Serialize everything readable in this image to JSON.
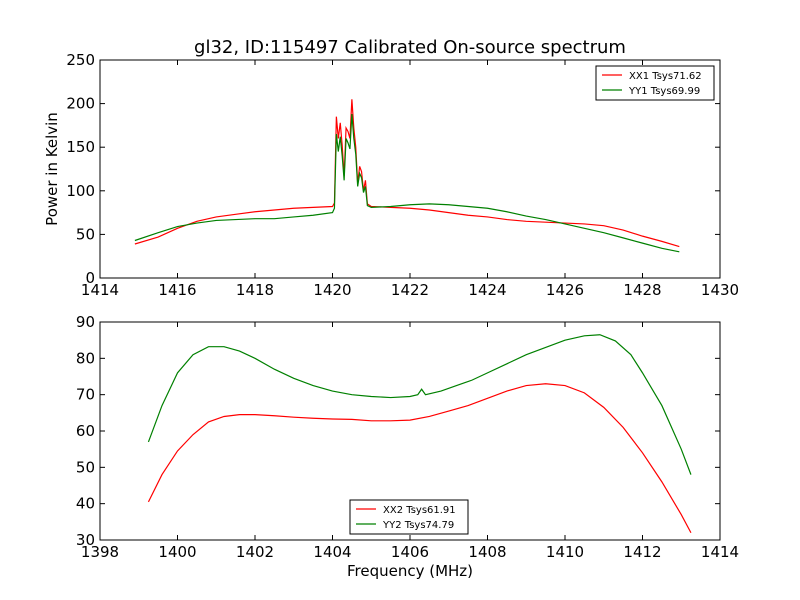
{
  "chart_data": [
    {
      "type": "line",
      "title": "gl32, ID:115497 Calibrated On-source spectrum",
      "xlabel": "",
      "ylabel": "Power in Kelvin",
      "xlim": [
        1414,
        1430
      ],
      "ylim": [
        0,
        250
      ],
      "xticks": [
        "1414",
        "1416",
        "1418",
        "1420",
        "1422",
        "1424",
        "1426",
        "1428",
        "1430"
      ],
      "yticks": [
        "0",
        "50",
        "100",
        "150",
        "200",
        "250"
      ],
      "legend": "top-right",
      "series": [
        {
          "name": "XX1 Tsys71.62",
          "color": "#ff0000",
          "x": [
            1414.9,
            1415.5,
            1416.0,
            1416.5,
            1417.0,
            1417.5,
            1418.0,
            1418.5,
            1419.0,
            1419.5,
            1420.0,
            1420.05,
            1420.1,
            1420.15,
            1420.2,
            1420.25,
            1420.3,
            1420.35,
            1420.4,
            1420.45,
            1420.5,
            1420.55,
            1420.6,
            1420.65,
            1420.7,
            1420.75,
            1420.8,
            1420.85,
            1420.9,
            1421.0,
            1421.5,
            1422.0,
            1422.5,
            1423.0,
            1423.5,
            1424.0,
            1424.5,
            1425.0,
            1425.5,
            1426.0,
            1426.5,
            1427.0,
            1427.5,
            1428.0,
            1428.5,
            1428.95
          ],
          "y": [
            39,
            47,
            57,
            65,
            70,
            73,
            76,
            78,
            80,
            81,
            82,
            86,
            185,
            160,
            178,
            152,
            117,
            172,
            168,
            160,
            205,
            172,
            150,
            108,
            128,
            122,
            100,
            112,
            85,
            82,
            81,
            80,
            78,
            75,
            72,
            70,
            67,
            65,
            64,
            63,
            62,
            60,
            55,
            48,
            42,
            36
          ]
        },
        {
          "name": "YY1 Tsys69.99",
          "color": "#008000",
          "x": [
            1414.9,
            1415.5,
            1416.0,
            1416.5,
            1417.0,
            1417.5,
            1418.0,
            1418.5,
            1419.0,
            1419.5,
            1420.0,
            1420.05,
            1420.1,
            1420.15,
            1420.2,
            1420.25,
            1420.3,
            1420.35,
            1420.4,
            1420.45,
            1420.5,
            1420.55,
            1420.6,
            1420.65,
            1420.7,
            1420.75,
            1420.8,
            1420.85,
            1420.9,
            1421.0,
            1421.5,
            1422.0,
            1422.5,
            1423.0,
            1423.5,
            1424.0,
            1424.5,
            1425.0,
            1425.5,
            1426.0,
            1426.5,
            1427.0,
            1427.5,
            1428.0,
            1428.5,
            1428.95
          ],
          "y": [
            43,
            52,
            59,
            63,
            66,
            67,
            68,
            68,
            70,
            72,
            75,
            80,
            165,
            145,
            162,
            140,
            112,
            160,
            155,
            148,
            188,
            160,
            142,
            105,
            120,
            115,
            98,
            105,
            83,
            81,
            82,
            84,
            85,
            84,
            82,
            80,
            76,
            71,
            67,
            62,
            57,
            52,
            46,
            40,
            34,
            30
          ]
        }
      ]
    },
    {
      "type": "line",
      "title": "",
      "xlabel": "Frequency (MHz)",
      "ylabel": "",
      "xlim": [
        1398,
        1414
      ],
      "ylim": [
        30,
        90
      ],
      "xticks": [
        "1398",
        "1400",
        "1402",
        "1404",
        "1406",
        "1408",
        "1410",
        "1412",
        "1414"
      ],
      "yticks": [
        "30",
        "40",
        "50",
        "60",
        "70",
        "80",
        "90"
      ],
      "legend": "bottom-center",
      "series": [
        {
          "name": "XX2 Tsys61.91",
          "color": "#ff0000",
          "x": [
            1399.25,
            1399.6,
            1400.0,
            1400.4,
            1400.8,
            1401.2,
            1401.6,
            1402.0,
            1402.5,
            1403.0,
            1403.5,
            1404.0,
            1404.5,
            1405.0,
            1405.5,
            1406.0,
            1406.5,
            1407.0,
            1407.5,
            1408.0,
            1408.5,
            1409.0,
            1409.5,
            1410.0,
            1410.5,
            1411.0,
            1411.5,
            1412.0,
            1412.5,
            1413.0,
            1413.25
          ],
          "y": [
            40.5,
            48,
            54.5,
            59,
            62.5,
            64,
            64.5,
            64.5,
            64.2,
            63.8,
            63.5,
            63.3,
            63.2,
            62.8,
            62.8,
            63,
            64,
            65.5,
            67,
            69,
            71,
            72.5,
            73,
            72.5,
            70.5,
            66.5,
            61,
            54,
            46,
            37,
            32
          ]
        },
        {
          "name": "YY2 Tsys74.79",
          "color": "#008000",
          "x": [
            1399.25,
            1399.6,
            1400.0,
            1400.4,
            1400.8,
            1401.2,
            1401.6,
            1402.0,
            1402.5,
            1403.0,
            1403.5,
            1404.0,
            1404.5,
            1405.0,
            1405.5,
            1406.0,
            1406.2,
            1406.3,
            1406.4,
            1406.8,
            1407.2,
            1407.6,
            1408.0,
            1408.5,
            1409.0,
            1409.5,
            1410.0,
            1410.5,
            1410.9,
            1411.3,
            1411.7,
            1412.0,
            1412.5,
            1413.0,
            1413.25
          ],
          "y": [
            57,
            67,
            76,
            81,
            83.2,
            83.2,
            82,
            80,
            77,
            74.5,
            72.5,
            71,
            70,
            69.5,
            69.2,
            69.5,
            70,
            71.5,
            70,
            71,
            72.5,
            74,
            76,
            78.5,
            81,
            83,
            85,
            86.2,
            86.5,
            84.8,
            81,
            76,
            67,
            55,
            48
          ]
        }
      ]
    }
  ]
}
